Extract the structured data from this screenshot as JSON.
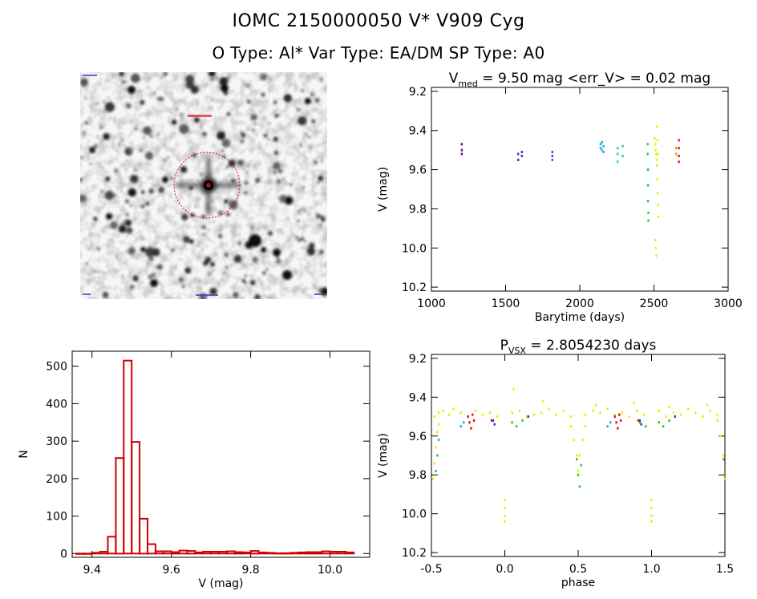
{
  "header": {
    "title_line1": "IOMC 2150000050    V* V909 Cyg",
    "title_line2": "O Type: Al*  Var Type: EA/DM  SP Type: A0"
  },
  "finder_image": {
    "label": "finding chart image",
    "colors": {
      "circle": "#e00000",
      "sky": "#f4f4f4"
    }
  },
  "chart_data": [
    {
      "id": "lightcurve",
      "type": "scatter",
      "title_prefix": "V",
      "title_subscript": "med",
      "title_rest": " = 9.50 mag <err_V> = 0.02 mag",
      "xlabel": "Barytime (days)",
      "ylabel": "V (mag)",
      "xlim": [
        1000,
        3000
      ],
      "ylim": [
        10.22,
        9.18
      ],
      "xticks": [
        "1000",
        "1500",
        "2000",
        "2500",
        "3000"
      ],
      "yticks": [
        "9.2",
        "9.4",
        "9.6",
        "9.8",
        "10.0",
        "10.2"
      ],
      "series": [
        {
          "name": "epoch1",
          "color": "#5a0f8c",
          "x": [
            1205,
            1205,
            1205
          ],
          "y": [
            9.47,
            9.5,
            9.52
          ]
        },
        {
          "name": "epoch2",
          "color": "#3333cc",
          "x": [
            1585,
            1585,
            1610,
            1610
          ],
          "y": [
            9.52,
            9.55,
            9.51,
            9.53
          ]
        },
        {
          "name": "epoch3",
          "color": "#3355dd",
          "x": [
            1815,
            1815,
            1815
          ],
          "y": [
            9.51,
            9.53,
            9.55
          ]
        },
        {
          "name": "epoch4",
          "color": "#22aadd",
          "x": [
            2140,
            2140,
            2150,
            2150,
            2160,
            2160
          ],
          "y": [
            9.47,
            9.49,
            9.46,
            9.5,
            9.48,
            9.51
          ]
        },
        {
          "name": "epoch5",
          "color": "#22ccaa",
          "x": [
            2255,
            2255,
            2255,
            2290,
            2290
          ],
          "y": [
            9.49,
            9.52,
            9.56,
            9.48,
            9.53
          ]
        },
        {
          "name": "epoch6",
          "color": "#22cc44",
          "x": [
            2458,
            2458,
            2460,
            2460,
            2460,
            2462,
            2462
          ],
          "y": [
            9.47,
            9.52,
            9.6,
            9.68,
            9.76,
            9.82,
            9.86
          ]
        },
        {
          "name": "epoch7",
          "color": "#e8ee00",
          "x": [
            2505,
            2510,
            2512,
            2515,
            2518,
            2520,
            2522,
            2525,
            2528,
            2530,
            2508,
            2512,
            2516,
            2520,
            2524,
            2526
          ],
          "y": [
            9.44,
            9.47,
            9.5,
            9.52,
            9.55,
            9.58,
            9.65,
            9.72,
            9.78,
            9.84,
            9.96,
            10.0,
            10.04,
            9.38,
            9.45,
            9.52
          ]
        },
        {
          "name": "epoch8",
          "color": "#ff8800",
          "x": [
            2650,
            2650
          ],
          "y": [
            9.49,
            9.52
          ]
        },
        {
          "name": "epoch9",
          "color": "#dd1111",
          "x": [
            2668,
            2668,
            2668,
            2668
          ],
          "y": [
            9.45,
            9.49,
            9.53,
            9.56
          ]
        }
      ]
    },
    {
      "id": "histogram",
      "type": "bar",
      "xlabel": "V (mag)",
      "ylabel": "N",
      "xlim": [
        9.35,
        10.1
      ],
      "ylim": [
        -10,
        540
      ],
      "xticks": [
        "9.4",
        "9.6",
        "9.8",
        "10.0"
      ],
      "yticks": [
        "0",
        "100",
        "200",
        "300",
        "400",
        "500"
      ],
      "bin_width": 0.02,
      "bin_starts": [
        9.36,
        9.38,
        9.4,
        9.42,
        9.44,
        9.46,
        9.48,
        9.5,
        9.52,
        9.54,
        9.56,
        9.58,
        9.6,
        9.62,
        9.64,
        9.66,
        9.68,
        9.7,
        9.72,
        9.74,
        9.76,
        9.78,
        9.8,
        9.82,
        9.84,
        9.86,
        9.88,
        9.9,
        9.92,
        9.94,
        9.96,
        9.98,
        10.0,
        10.02,
        10.04
      ],
      "values": [
        0,
        0,
        2,
        5,
        45,
        255,
        515,
        298,
        93,
        25,
        6,
        6,
        4,
        8,
        7,
        3,
        5,
        5,
        5,
        6,
        4,
        3,
        7,
        3,
        2,
        1,
        1,
        2,
        3,
        4,
        4,
        6,
        5,
        5,
        3
      ],
      "color": "#d00000"
    },
    {
      "id": "phased",
      "type": "scatter",
      "title_prefix": "P",
      "title_subscript": "VSX",
      "title_rest": " = 2.8054230 days",
      "xlabel": "phase",
      "ylabel": "V (mag)",
      "xlim": [
        -0.5,
        1.5
      ],
      "ylim": [
        10.22,
        9.18
      ],
      "xticks": [
        "-0.5",
        "0.0",
        "0.5",
        "1.0",
        "1.5"
      ],
      "yticks": [
        "9.2",
        "9.4",
        "9.6",
        "9.8",
        "10.0",
        "10.2"
      ],
      "series": [
        {
          "name": "yellow-ooe",
          "color": "#e8ee00",
          "x": [
            -0.48,
            -0.45,
            -0.42,
            -0.38,
            -0.35,
            -0.3,
            -0.25,
            -0.2,
            -0.15,
            -0.1,
            -0.05,
            0.05,
            0.1,
            0.15,
            0.2,
            0.25,
            0.3,
            0.35,
            0.4,
            0.45,
            0.55,
            0.6,
            0.65,
            0.7,
            0.75,
            0.8,
            0.85,
            0.9,
            0.95,
            1.05,
            1.1,
            1.15,
            1.2,
            1.25,
            1.3,
            1.35,
            1.4,
            1.45,
            0.06,
            0.26,
            0.62,
            0.88,
            1.12,
            1.38
          ],
          "y": [
            9.5,
            9.48,
            9.47,
            9.49,
            9.46,
            9.48,
            9.5,
            9.47,
            9.49,
            9.48,
            9.5,
            9.48,
            9.47,
            9.5,
            9.49,
            9.48,
            9.46,
            9.49,
            9.47,
            9.5,
            9.49,
            9.47,
            9.48,
            9.46,
            9.49,
            9.48,
            9.5,
            9.47,
            9.49,
            9.47,
            9.5,
            9.48,
            9.49,
            9.46,
            9.48,
            9.5,
            9.47,
            9.49,
            9.36,
            9.42,
            9.44,
            9.43,
            9.45,
            9.44
          ]
        },
        {
          "name": "yellow-eclipse",
          "color": "#e8ee00",
          "x": [
            -0.49,
            -0.48,
            -0.47,
            -0.46,
            -0.45,
            0.0,
            0.0,
            0.0,
            0.0,
            0.45,
            0.47,
            0.49,
            0.5,
            0.51,
            0.53,
            0.55,
            1.0,
            1.0,
            1.0,
            1.0,
            1.45,
            1.47,
            1.49,
            1.5
          ],
          "y": [
            9.82,
            9.74,
            9.66,
            9.58,
            9.54,
            9.93,
            9.97,
            10.01,
            10.04,
            9.55,
            9.62,
            9.7,
            9.78,
            9.7,
            9.62,
            9.55,
            9.93,
            9.97,
            10.01,
            10.04,
            9.52,
            9.6,
            9.7,
            9.82
          ]
        },
        {
          "name": "green",
          "color": "#22cc22",
          "x": [
            -0.47,
            -0.46,
            -0.45,
            0.05,
            0.08,
            0.12,
            0.49,
            0.5,
            0.51,
            0.52,
            0.92,
            0.96,
            1.05,
            1.08,
            1.12,
            1.49,
            1.5
          ],
          "y": [
            9.78,
            9.7,
            9.62,
            9.53,
            9.55,
            9.52,
            9.72,
            9.8,
            9.86,
            9.75,
            9.53,
            9.55,
            9.53,
            9.55,
            9.52,
            9.72,
            9.8
          ]
        },
        {
          "name": "cyan",
          "color": "#22aadd",
          "x": [
            -0.3,
            -0.28,
            0.7,
            0.72
          ],
          "y": [
            9.55,
            9.53,
            9.55,
            9.53
          ]
        },
        {
          "name": "blue",
          "color": "#3333cc",
          "x": [
            -0.08,
            0.16,
            0.92,
            1.16,
            -0.07,
            0.93
          ],
          "y": [
            9.52,
            9.5,
            9.52,
            9.5,
            9.54,
            9.54
          ]
        },
        {
          "name": "red",
          "color": "#dd1111",
          "x": [
            -0.25,
            -0.24,
            -0.23,
            -0.22,
            -0.21,
            0.75,
            0.76,
            0.77,
            0.78,
            0.79,
            -0.09,
            0.91
          ],
          "y": [
            9.5,
            9.53,
            9.56,
            9.49,
            9.52,
            9.5,
            9.53,
            9.56,
            9.49,
            9.52,
            9.52,
            9.52
          ]
        }
      ]
    }
  ]
}
